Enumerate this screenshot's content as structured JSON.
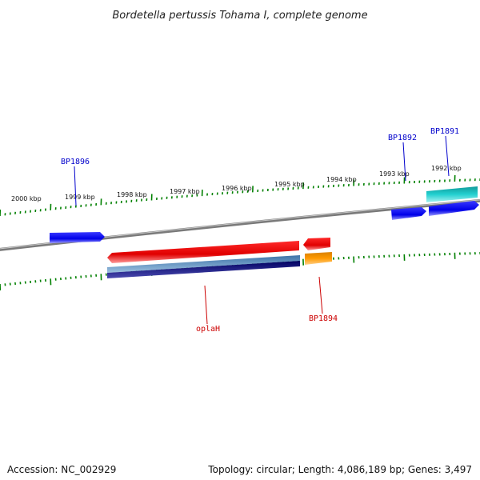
{
  "title": "Bordetella pertussis Tohama I, complete genome",
  "ticks": [
    "2000 kbp",
    "1999 kbp",
    "1998 kbp",
    "1997 kbp",
    "1996 kbp",
    "1995 kbp",
    "1994 kbp",
    "1993 kbp",
    "1992 kbp"
  ],
  "gene_labels": {
    "bp1896": "BP1896",
    "bp1892": "BP1892",
    "bp1891": "BP1891",
    "oplah": "oplaH",
    "bp1894": "BP1894"
  },
  "colors": {
    "forward_cds": "#0000ff",
    "forward_alt": "#00c8c8",
    "reverse_cds": "#ff0000",
    "reverse_alt": "#ff9900",
    "domain_1": "#4682b4",
    "domain_2": "#000080",
    "ticks": "#008000",
    "backbone": "#808080",
    "label_forward": "#0000cc",
    "label_reverse": "#cc0000"
  },
  "footer": {
    "accession": "Accession: NC_002929",
    "summary": "Topology: circular; Length: 4,086,189 bp; Genes: 3,497"
  }
}
